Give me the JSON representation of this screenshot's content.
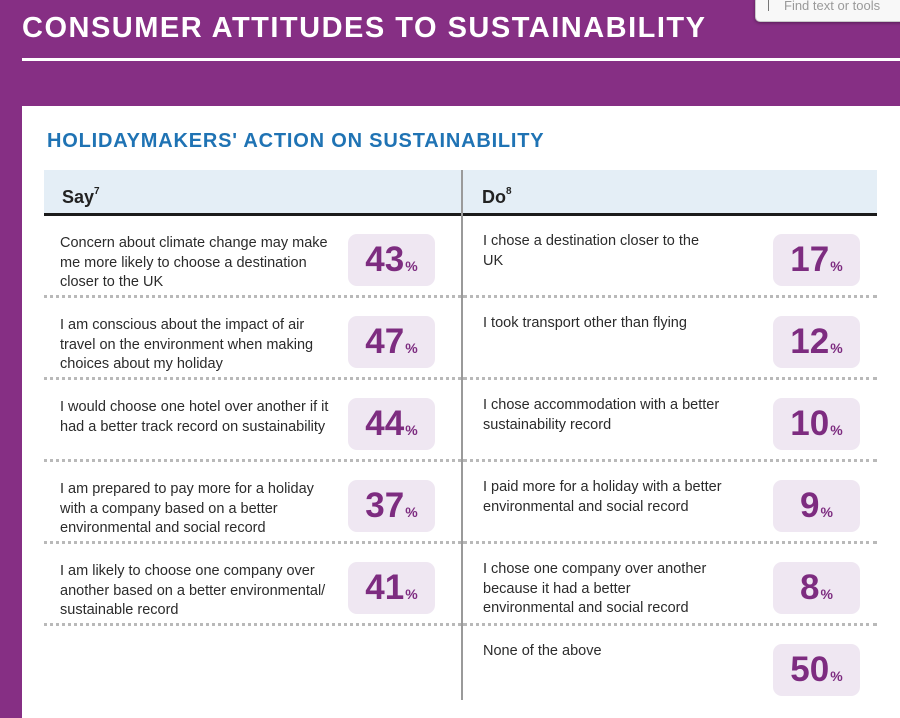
{
  "page": {
    "title": "CONSUMER ATTITUDES TO SUSTAINABILITY",
    "search_placeholder": "Find text or tools"
  },
  "section": {
    "title": "HOLIDAYMAKERS' ACTION ON SUSTAINABILITY"
  },
  "columns": {
    "say": {
      "label": "Say",
      "footnote": "7"
    },
    "do": {
      "label": "Do",
      "footnote": "8"
    }
  },
  "say_rows": [
    {
      "text": "Concern about climate change may make me more likely to choose a destination closer to the UK",
      "value": "43",
      "unit": "%"
    },
    {
      "text": "I am conscious about the impact of air travel on the environment when making choices about my holiday",
      "value": "47",
      "unit": "%"
    },
    {
      "text": "I would choose one hotel over another if it had a better track record on sustainability",
      "value": "44",
      "unit": "%"
    },
    {
      "text": "I am prepared to pay more for a holiday with a company based on a better environmental and social record",
      "value": "37",
      "unit": "%"
    },
    {
      "text": "I am likely to choose one company over another based on a better environmental/ sustainable record",
      "value": "41",
      "unit": "%"
    }
  ],
  "do_rows": [
    {
      "text": "I chose a destination closer to the UK",
      "value": "17",
      "unit": "%"
    },
    {
      "text": "I took transport other than flying",
      "value": "12",
      "unit": "%"
    },
    {
      "text": "I chose accommodation with a better sustainability record",
      "value": "10",
      "unit": "%"
    },
    {
      "text": "I paid more for a holiday with a better environmental and social record",
      "value": "9",
      "unit": "%"
    },
    {
      "text": "I chose one company over another because it had a better environmental and social record",
      "value": "8",
      "unit": "%"
    },
    {
      "text": "None of the above",
      "value": "50",
      "unit": "%"
    }
  ],
  "colors": {
    "background_purple": "#862f84",
    "heading_blue": "#1f73b4",
    "value_purple": "#7d2c80",
    "value_box": "#efe7f2",
    "header_band": "#e4eef6"
  }
}
